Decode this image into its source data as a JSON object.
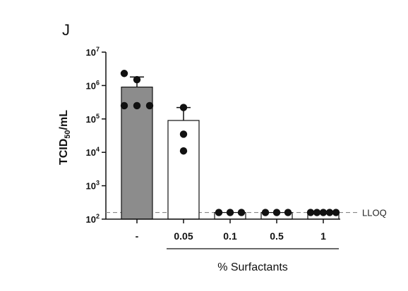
{
  "chart_data": {
    "type": "bar",
    "panel_label": "J",
    "ylabel": "TCID50/mL",
    "ylabel_main": "TCID",
    "ylabel_sub": "50",
    "ylabel_tail": "/mL",
    "yscale": "log",
    "ylim": [
      100,
      10000000
    ],
    "yticks": [
      {
        "value": 100,
        "base": "10",
        "exp": "2"
      },
      {
        "value": 1000,
        "base": "10",
        "exp": "3"
      },
      {
        "value": 10000,
        "base": "10",
        "exp": "4"
      },
      {
        "value": 100000,
        "base": "10",
        "exp": "5"
      },
      {
        "value": 1000000,
        "base": "10",
        "exp": "6"
      },
      {
        "value": 10000000,
        "base": "10",
        "exp": "7"
      }
    ],
    "categories": [
      "-",
      "0.05",
      "0.1",
      "0.5",
      "1"
    ],
    "group_label": "% Surfactants",
    "bars": [
      {
        "category": "-",
        "mean": 900000,
        "error_upper": 1800000,
        "color": "#8c8c8c",
        "points": [
          2300000,
          1500000,
          250000,
          250000,
          250000
        ]
      },
      {
        "category": "0.05",
        "mean": 90000,
        "error_upper": 220000,
        "color": "#ffffff",
        "points": [
          220000,
          35000,
          11000
        ]
      },
      {
        "category": "0.1",
        "mean": 158,
        "error_upper": null,
        "color": "#ffffff",
        "points": [
          158,
          158,
          158
        ]
      },
      {
        "category": "0.5",
        "mean": 158,
        "error_upper": null,
        "color": "#ffffff",
        "points": [
          158,
          158,
          158
        ]
      },
      {
        "category": "1",
        "mean": 158,
        "error_upper": null,
        "color": "#ffffff",
        "points": [
          158,
          158,
          158,
          158,
          158
        ]
      }
    ],
    "reference_line": {
      "label": "LLOQ",
      "value": 158,
      "style": "dashed",
      "color": "#888888"
    },
    "grid": false,
    "legend": "none"
  }
}
